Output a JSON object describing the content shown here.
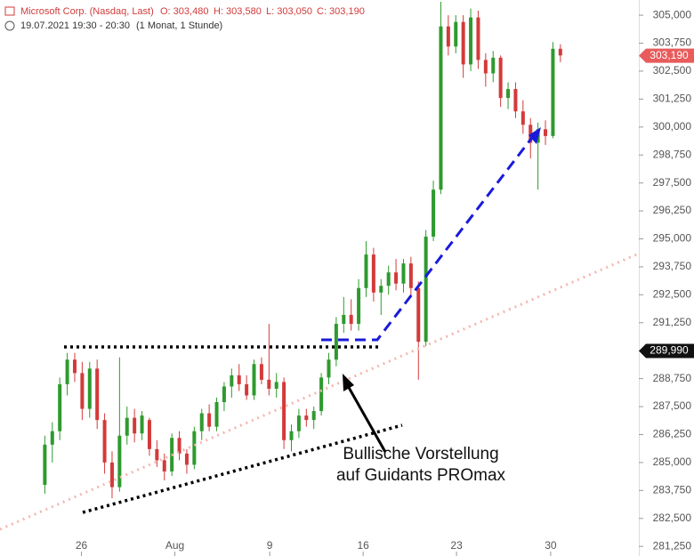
{
  "chart_data": {
    "type": "candlestick",
    "title": "Microsoft Corp. (Nasdaq, Last)",
    "header_ohlc": [
      "O: 303,480",
      "H: 303,580",
      "L: 303,050",
      "C: 303,190"
    ],
    "subtitle": "19.07.2021 19:30 - 20:30",
    "period": "(1 Monat, 1 Stunde)",
    "annotation": [
      "Bullische Vorstellung",
      "auf Guidants PROmax"
    ],
    "up_color": "#2e9a2e",
    "down_color": "#d33a3a",
    "open": [
      284.0,
      285.8,
      286.4,
      288.5,
      289.6,
      289.0,
      287.4,
      289.2,
      286.9,
      285.0,
      283.9,
      286.2,
      287.0,
      286.3,
      286.9,
      285.6,
      285.1,
      284.6,
      286.1,
      285.4,
      284.9,
      286.4,
      287.2,
      286.6,
      287.7,
      288.4,
      288.9,
      288.5,
      288.0,
      289.4,
      288.7,
      288.3,
      288.6,
      286.0,
      286.4,
      287.1,
      286.9,
      287.3,
      288.8,
      289.6,
      291.2,
      291.6,
      291.2,
      292.8,
      294.3,
      292.6,
      292.9,
      293.5,
      293.0,
      293.9,
      292.8,
      290.4,
      295.1,
      297.2,
      304.5,
      303.6,
      304.7,
      302.8,
      304.9,
      303.0,
      302.4,
      303.1,
      301.3,
      301.7,
      300.7,
      300.1,
      299.3,
      299.9,
      299.6,
      303.5
    ],
    "high": [
      286.2,
      286.8,
      288.8,
      289.9,
      289.9,
      289.5,
      289.5,
      289.6,
      287.2,
      285.5,
      289.7,
      287.5,
      287.4,
      287.3,
      287.0,
      286.0,
      285.4,
      286.3,
      286.4,
      285.6,
      286.6,
      287.4,
      287.6,
      287.9,
      288.6,
      289.2,
      289.4,
      288.9,
      289.6,
      289.7,
      291.2,
      289.0,
      288.8,
      286.7,
      287.4,
      287.4,
      287.5,
      289.0,
      289.9,
      291.5,
      292.4,
      292.3,
      293.2,
      294.9,
      294.6,
      293.2,
      293.8,
      294.1,
      294.1,
      294.2,
      293.1,
      295.4,
      297.6,
      305.6,
      305.0,
      305.0,
      305.0,
      305.3,
      305.2,
      303.3,
      303.4,
      303.2,
      302.0,
      302.0,
      301.2,
      300.4,
      300.2,
      300.3,
      303.8,
      303.7
    ],
    "low": [
      283.6,
      285.0,
      286.0,
      288.0,
      288.6,
      286.9,
      287.0,
      286.5,
      284.5,
      283.4,
      283.7,
      285.8,
      285.9,
      286.0,
      285.3,
      284.8,
      284.2,
      284.4,
      285.1,
      284.5,
      284.7,
      286.0,
      286.4,
      286.4,
      287.3,
      287.9,
      288.2,
      287.8,
      287.8,
      288.5,
      288.0,
      287.9,
      285.6,
      285.5,
      286.1,
      286.6,
      286.5,
      287.1,
      288.5,
      289.3,
      290.8,
      290.9,
      290.9,
      292.4,
      292.2,
      291.6,
      292.5,
      292.7,
      292.6,
      292.4,
      288.7,
      290.2,
      294.9,
      297.0,
      303.2,
      303.3,
      302.2,
      302.5,
      302.6,
      301.8,
      302.0,
      300.9,
      300.8,
      300.4,
      299.7,
      298.6,
      297.2,
      299.2,
      299.5,
      302.9
    ],
    "close": [
      285.8,
      286.4,
      288.5,
      289.6,
      289.0,
      287.4,
      289.2,
      286.9,
      285.0,
      283.9,
      286.2,
      287.0,
      286.3,
      287.1,
      285.6,
      285.1,
      284.6,
      286.1,
      285.4,
      284.9,
      286.4,
      287.2,
      286.6,
      287.7,
      288.4,
      288.9,
      288.5,
      288.0,
      289.4,
      288.7,
      288.3,
      288.6,
      286.0,
      286.4,
      287.1,
      286.9,
      287.3,
      288.8,
      289.6,
      291.2,
      291.6,
      291.2,
      292.8,
      294.3,
      292.6,
      292.9,
      293.5,
      293.0,
      293.9,
      292.8,
      290.4,
      295.1,
      297.2,
      304.5,
      303.6,
      304.7,
      302.8,
      304.9,
      303.0,
      302.4,
      303.1,
      301.3,
      301.7,
      300.7,
      300.1,
      299.3,
      299.9,
      299.6,
      303.5,
      303.2
    ],
    "xlim": [
      -6,
      79.5
    ],
    "xticks": [
      {
        "value": 4.9,
        "label": "26"
      },
      {
        "value": 17.4,
        "label": "Aug"
      },
      {
        "value": 30.1,
        "label": "9"
      },
      {
        "value": 42.6,
        "label": "16"
      },
      {
        "value": 55.1,
        "label": "23"
      },
      {
        "value": 67.7,
        "label": "30"
      }
    ],
    "ylim": [
      280.82,
      305.68
    ],
    "yticks": [
      {
        "value": 281.25,
        "label": "281,250"
      },
      {
        "value": 282.5,
        "label": "282,500"
      },
      {
        "value": 283.75,
        "label": "283,750"
      },
      {
        "value": 285,
        "label": "285,000"
      },
      {
        "value": 286.25,
        "label": "286,250"
      },
      {
        "value": 287.5,
        "label": "287,500"
      },
      {
        "value": 288.75,
        "label": "288,750"
      },
      {
        "value": 290,
        "label": "290,000"
      },
      {
        "value": 291.25,
        "label": "291,250"
      },
      {
        "value": 292.5,
        "label": "292,500"
      },
      {
        "value": 293.75,
        "label": "293,750"
      },
      {
        "value": 295,
        "label": "295,000"
      },
      {
        "value": 296.25,
        "label": "296,250"
      },
      {
        "value": 297.5,
        "label": "297,500"
      },
      {
        "value": 298.75,
        "label": "298,750"
      },
      {
        "value": 300,
        "label": "300,000"
      },
      {
        "value": 301.25,
        "label": "301,250"
      },
      {
        "value": 302.5,
        "label": "302,500"
      },
      {
        "value": 303.75,
        "label": "303,750"
      },
      {
        "value": 305,
        "label": "305,000"
      }
    ],
    "last_price": {
      "value": 303.19,
      "label": "303,190",
      "color": "#e85c5c"
    },
    "level_marker": {
      "value": 289.99,
      "label": "289,990",
      "color": "#111111"
    }
  }
}
